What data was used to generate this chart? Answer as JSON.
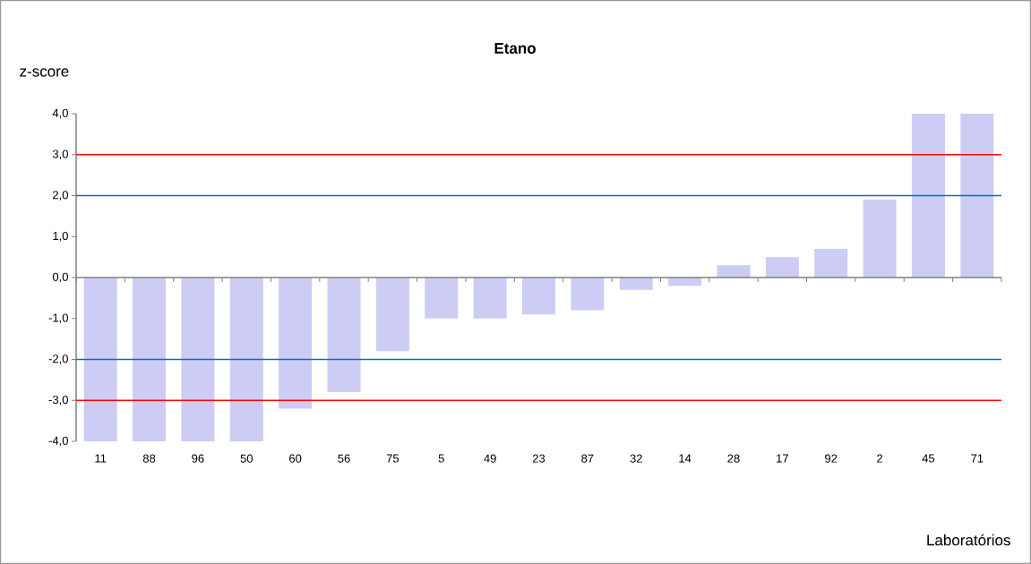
{
  "chart_data": {
    "type": "bar",
    "title": "Etano",
    "ylabel": "z-score",
    "xlabel": "Laboratórios",
    "categories": [
      "11",
      "88",
      "96",
      "50",
      "60",
      "56",
      "75",
      "5",
      "49",
      "23",
      "87",
      "32",
      "14",
      "28",
      "17",
      "92",
      "2",
      "45",
      "71"
    ],
    "values": [
      -4.0,
      -4.0,
      -4.0,
      -4.0,
      -3.2,
      -2.8,
      -1.8,
      -1.0,
      -1.0,
      -0.9,
      -0.8,
      -0.3,
      -0.2,
      0.3,
      0.5,
      0.7,
      1.9,
      4.0,
      4.0
    ],
    "color": "#ccccf5",
    "ylim": [
      -4,
      4
    ],
    "yticks": [
      {
        "value": -4,
        "label": "-4,0"
      },
      {
        "value": -3,
        "label": "-3,0"
      },
      {
        "value": -2,
        "label": "-2,0"
      },
      {
        "value": -1,
        "label": "-1,0"
      },
      {
        "value": 0,
        "label": "0,0"
      },
      {
        "value": 1,
        "label": "1,0"
      },
      {
        "value": 2,
        "label": "2,0"
      },
      {
        "value": 3,
        "label": "3,0"
      },
      {
        "value": 4,
        "label": "4,0"
      }
    ],
    "ref_lines": [
      {
        "axis": "y",
        "value": 3,
        "color": "#ff0000"
      },
      {
        "axis": "y",
        "value": 2,
        "color": "#0070c0"
      },
      {
        "axis": "y",
        "value": -2,
        "color": "#0070c0"
      },
      {
        "axis": "y",
        "value": -3,
        "color": "#ff0000"
      }
    ],
    "grid": false
  }
}
